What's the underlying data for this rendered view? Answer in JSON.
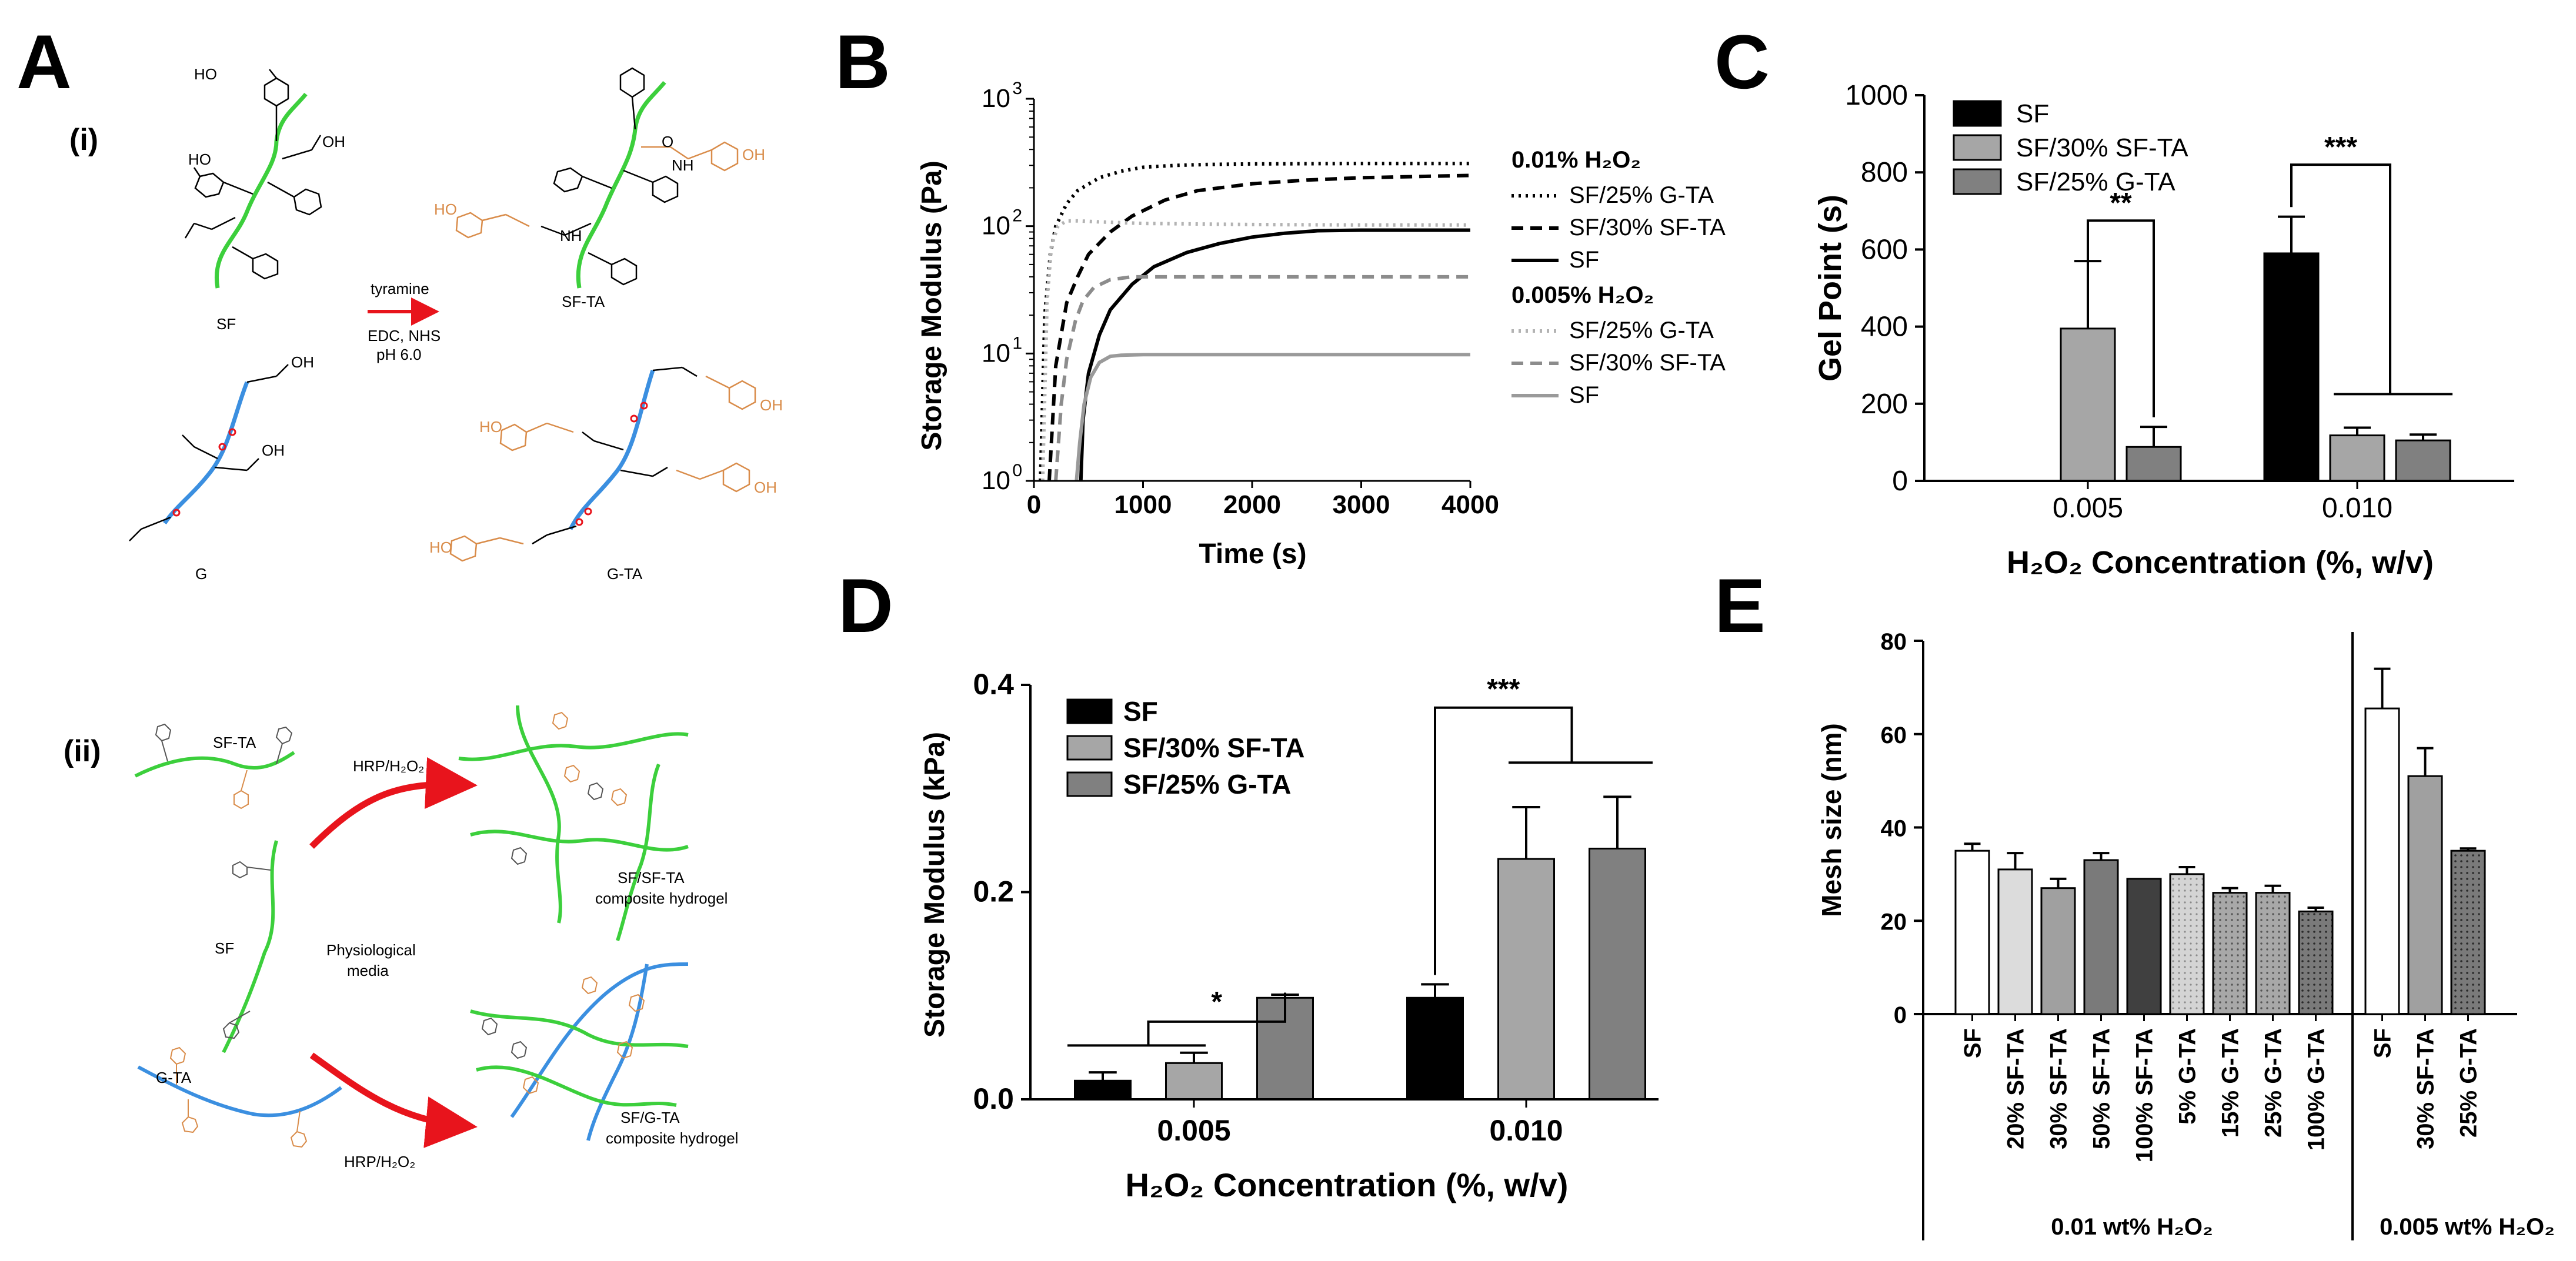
{
  "panel_labels": {
    "a": "A",
    "b": "B",
    "c": "C",
    "d": "D",
    "e": "E"
  },
  "panel_a": {
    "sub_i": "(i)",
    "sub_ii": "(ii)",
    "reaction": {
      "reagent": "tyramine",
      "conditions_1": "EDC, NHS",
      "conditions_2": "pH 6.0"
    },
    "labels": {
      "sf": "SF",
      "sf_ta": "SF-TA",
      "g": "G",
      "g_ta": "G-TA",
      "oh": "OH",
      "ho": "HO",
      "nh": "NH",
      "o": "O"
    },
    "scheme": {
      "sf_ta": "SF-TA",
      "sf": "SF",
      "g_ta": "G-TA",
      "hrp_top": "HRP/H₂O₂",
      "hrp_bottom": "HRP/H₂O₂",
      "physio_1": "Physiological",
      "physio_2": "media",
      "comp1_1": "SF/SF-TA",
      "comp1_2": "composite hydrogel",
      "comp2_1": "SF/G-TA",
      "comp2_2": "composite hydrogel"
    },
    "colors": {
      "sf": "#3ccf3c",
      "g": "#3b8fe0",
      "tyramine": "#d98c4a",
      "arrow": "#e8141c"
    }
  },
  "chart_data": [
    {
      "panel": "B",
      "type": "line",
      "xlabel": "Time (s)",
      "ylabel": "Storage Modulus (Pa)",
      "xlim": [
        0,
        4000
      ],
      "x_ticks": [
        "0",
        "1000",
        "2000",
        "3000",
        "4000"
      ],
      "yscale": "log",
      "ylim": [
        1,
        1000
      ],
      "y_ticks": [
        {
          "base": "10",
          "exp": "0"
        },
        {
          "base": "10",
          "exp": "1"
        },
        {
          "base": "10",
          "exp": "2"
        },
        {
          "base": "10",
          "exp": "3"
        }
      ],
      "legend_groups": [
        {
          "title": "0.01% H₂O₂",
          "entries": [
            "SF/25% G-TA",
            "SF/30% SF-TA",
            "SF"
          ]
        },
        {
          "title": "0.005% H₂O₂",
          "entries": [
            "SF/25% G-TA",
            "SF/30% SF-TA",
            "SF"
          ]
        }
      ],
      "series": [
        {
          "name": "0.01% SF/25% G-TA",
          "color": "#000000",
          "style": "dotted",
          "x": [
            60,
            100,
            150,
            200,
            300,
            400,
            600,
            800,
            1000,
            1300,
            1600,
            2000,
            3000,
            4000
          ],
          "y": [
            1,
            20,
            60,
            100,
            150,
            190,
            240,
            270,
            290,
            300,
            305,
            308,
            310,
            310
          ]
        },
        {
          "name": "0.01% SF/30% SF-TA",
          "color": "#000000",
          "style": "dashed",
          "x": [
            140,
            200,
            300,
            400,
            500,
            700,
            900,
            1200,
            1500,
            2000,
            2500,
            3000,
            4000
          ],
          "y": [
            1,
            8,
            25,
            40,
            60,
            90,
            120,
            160,
            190,
            215,
            230,
            240,
            250
          ]
        },
        {
          "name": "0.01% SF",
          "color": "#000000",
          "style": "solid",
          "x": [
            430,
            450,
            500,
            600,
            700,
            900,
            1100,
            1400,
            1700,
            2000,
            2300,
            2600,
            3000,
            4000
          ],
          "y": [
            1,
            3,
            7,
            14,
            22,
            35,
            48,
            62,
            73,
            82,
            88,
            92,
            93,
            93
          ]
        },
        {
          "name": "0.005% SF/25% G-TA",
          "color": "#b3b3b3",
          "style": "dotted",
          "x": [
            80,
            120,
            160,
            220,
            300,
            400,
            600,
            1000,
            2000,
            3000,
            4000
          ],
          "y": [
            1,
            25,
            70,
            100,
            110,
            110,
            108,
            105,
            103,
            102,
            102
          ]
        },
        {
          "name": "0.005% SF/30% SF-TA",
          "color": "#8c8c8c",
          "style": "dashed",
          "x": [
            200,
            250,
            300,
            380,
            450,
            550,
            700,
            900,
            1200,
            2000,
            3000,
            4000
          ],
          "y": [
            1,
            4,
            9,
            18,
            26,
            33,
            38,
            40,
            40,
            40,
            40,
            40
          ]
        },
        {
          "name": "0.005% SF",
          "color": "#9a9a9a",
          "style": "solid",
          "x": [
            390,
            420,
            460,
            520,
            600,
            700,
            800,
            1000,
            1500,
            2000,
            3000,
            4000
          ],
          "y": [
            1,
            2,
            4,
            6.5,
            8.5,
            9.5,
            9.7,
            9.8,
            9.8,
            9.8,
            9.8,
            9.8
          ]
        }
      ]
    },
    {
      "panel": "C",
      "type": "bar",
      "xlabel": "H₂O₂ Concentration (%, w/v)",
      "ylabel": "Gel Point (s)",
      "ylim": [
        0,
        1000
      ],
      "y_ticks": [
        0,
        200,
        400,
        600,
        800,
        1000
      ],
      "categories": [
        "0.005",
        "0.010"
      ],
      "series": [
        {
          "name": "SF",
          "color": "#000000",
          "values": [
            0,
            590
          ],
          "errors": [
            0,
            95
          ]
        },
        {
          "name": "SF/30% SF-TA",
          "color": "#a6a6a6",
          "values": [
            395,
            118
          ],
          "errors": [
            175,
            20
          ]
        },
        {
          "name": "SF/25% G-TA",
          "color": "#808080",
          "values": [
            88,
            105
          ],
          "errors": [
            52,
            15
          ]
        }
      ],
      "significance": [
        {
          "category": "0.005",
          "label": "**"
        },
        {
          "category": "0.010",
          "label": "***"
        }
      ]
    },
    {
      "panel": "D",
      "type": "bar",
      "xlabel": "H₂O₂ Concentration (%, w/v)",
      "ylabel": "Storage Modulus (kPa)",
      "ylim": [
        0,
        0.4
      ],
      "y_ticks": [
        "0.0",
        "0.2",
        "0.4"
      ],
      "categories": [
        "0.005",
        "0.010"
      ],
      "series": [
        {
          "name": "SF",
          "color": "#000000",
          "values": [
            0.018,
            0.098
          ],
          "errors": [
            0.008,
            0.013
          ]
        },
        {
          "name": "SF/30% SF-TA",
          "color": "#a6a6a6",
          "values": [
            0.035,
            0.232
          ],
          "errors": [
            0.01,
            0.05
          ]
        },
        {
          "name": "SF/25% G-TA",
          "color": "#808080",
          "values": [
            0.098,
            0.242
          ],
          "errors": [
            0.003,
            0.05
          ]
        }
      ],
      "significance": [
        {
          "category": "0.005",
          "label": "*"
        },
        {
          "category": "0.010",
          "label": "***"
        }
      ]
    },
    {
      "panel": "E",
      "type": "bar",
      "ylabel": "Mesh size (nm)",
      "ylim": [
        0,
        80
      ],
      "y_ticks": [
        0,
        20,
        40,
        60,
        80
      ],
      "groups": [
        {
          "label": "0.01 wt% H₂O₂",
          "categories": [
            "SF",
            "20% SF-TA",
            "30% SF-TA",
            "50% SF-TA",
            "100% SF-TA",
            "5% G-TA",
            "15% G-TA",
            "25% G-TA",
            "100% G-TA"
          ],
          "values": [
            35,
            31,
            27,
            33,
            29,
            30,
            26,
            26,
            22
          ],
          "errors": [
            1.5,
            3.5,
            2.0,
            1.5,
            0,
            1.5,
            1.0,
            1.5,
            0.8
          ]
        },
        {
          "label": "0.005 wt% H₂O₂",
          "categories": [
            "SF",
            "30% SF-TA",
            "25% G-TA"
          ],
          "values": [
            65.5,
            51,
            35
          ],
          "errors": [
            8.5,
            6,
            0.5
          ]
        }
      ]
    }
  ]
}
